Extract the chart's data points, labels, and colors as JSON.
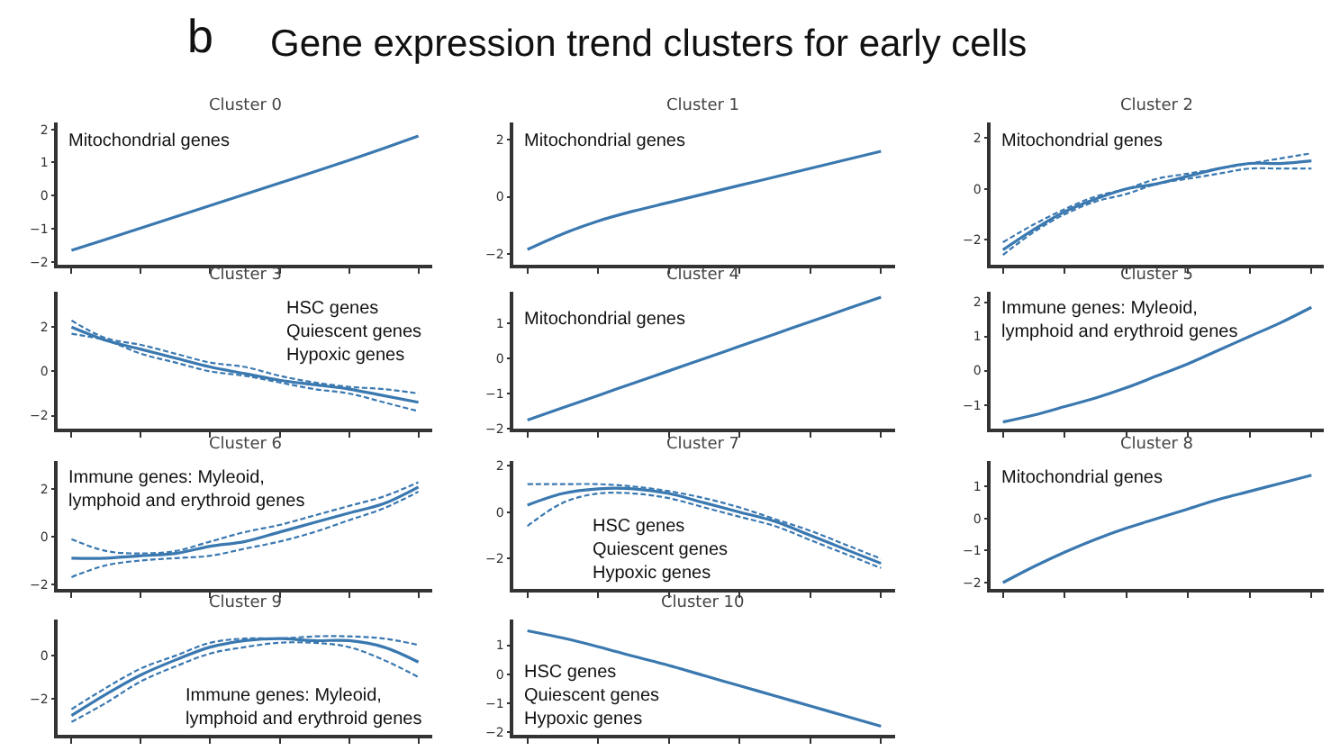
{
  "chart_data": [
    {
      "type": "line",
      "title": "Cluster 0",
      "annotations": [
        "b",
        "Gene expression trend clusters for early cells",
        "Mitochondrial genes"
      ],
      "categories": [
        null,
        null,
        null,
        null,
        null,
        null,
        null,
        null,
        null,
        null,
        null
      ],
      "ylim": [
        -2.1,
        2.2
      ],
      "yticks": [
        -2,
        -1,
        0,
        1,
        2
      ],
      "tick_labels": "y",
      "series": [
        {
          "color": "#3a78b0",
          "values": [
            -1.65,
            -1.32,
            -0.98,
            -0.64,
            -0.3,
            0.04,
            0.38,
            0.72,
            1.07,
            1.43,
            1.8
          ]
        }
      ]
    },
    {
      "type": "line",
      "title": "Cluster 1",
      "annotations": [
        "Mitochondrial genes"
      ],
      "categories": [
        null,
        null,
        null,
        null,
        null,
        null,
        null,
        null,
        null,
        null,
        null
      ],
      "ylim": [
        -2.4,
        2.6
      ],
      "yticks": [
        -2,
        0,
        2
      ],
      "tick_labels": "y",
      "series": [
        {
          "color": "#3a78b0",
          "values": [
            -1.85,
            -1.3,
            -0.85,
            -0.5,
            -0.2,
            0.1,
            0.4,
            0.7,
            1.0,
            1.3,
            1.6
          ]
        }
      ]
    },
    {
      "type": "line",
      "title": "Cluster 2",
      "annotations": [
        "Mitochondrial genes"
      ],
      "categories": [
        null,
        null,
        null,
        null,
        null,
        null,
        null,
        null,
        null,
        null,
        null
      ],
      "ylim": [
        -3.0,
        2.6
      ],
      "yticks": [
        -2,
        0,
        2
      ],
      "tick_labels": "y",
      "series": [
        {
          "color": "#3a78b0",
          "values": [
            -2.4,
            -1.6,
            -0.9,
            -0.4,
            0.0,
            0.2,
            0.5,
            0.8,
            1.0,
            1.0,
            1.1
          ]
        },
        {
          "color": "#3a78b0",
          "line_style": "dashed",
          "values": [
            -2.6,
            -1.7,
            -1.0,
            -0.5,
            -0.2,
            0.2,
            0.4,
            0.6,
            0.8,
            0.8,
            0.8
          ]
        },
        {
          "color": "#3a78b0",
          "line_style": "dashed",
          "values": [
            -2.1,
            -1.4,
            -0.8,
            -0.3,
            0.0,
            0.4,
            0.6,
            0.8,
            1.0,
            1.2,
            1.4
          ]
        }
      ]
    },
    {
      "type": "line",
      "title": "Cluster 3",
      "annotations": [
        "HSC genes\nQuiescent genes\nHypoxic genes"
      ],
      "categories": [
        null,
        null,
        null,
        null,
        null,
        null,
        null,
        null,
        null,
        null,
        null
      ],
      "ylim": [
        -2.6,
        3.6
      ],
      "yticks": [
        -2,
        0,
        2
      ],
      "tick_labels": "y",
      "series": [
        {
          "color": "#3a78b0",
          "values": [
            2.0,
            1.4,
            1.0,
            0.6,
            0.2,
            -0.1,
            -0.4,
            -0.6,
            -0.8,
            -1.1,
            -1.4
          ]
        },
        {
          "color": "#3a78b0",
          "line_style": "dashed",
          "values": [
            1.7,
            1.4,
            0.8,
            0.4,
            0.0,
            -0.2,
            -0.5,
            -0.8,
            -1.0,
            -1.4,
            -1.8
          ]
        },
        {
          "color": "#3a78b0",
          "line_style": "dashed",
          "values": [
            2.3,
            1.5,
            1.2,
            0.8,
            0.4,
            0.2,
            -0.2,
            -0.5,
            -0.7,
            -0.8,
            -1.0
          ]
        }
      ]
    },
    {
      "type": "line",
      "title": "Cluster 4",
      "annotations": [
        "Mitochondrial genes"
      ],
      "categories": [
        null,
        null,
        null,
        null,
        null,
        null,
        null,
        null,
        null,
        null,
        null
      ],
      "ylim": [
        -2.0,
        1.9
      ],
      "yticks": [
        -2,
        -1,
        0,
        1
      ],
      "tick_labels": "y",
      "series": [
        {
          "color": "#3a78b0",
          "values": [
            -1.75,
            -1.4,
            -1.05,
            -0.7,
            -0.35,
            0.0,
            0.35,
            0.7,
            1.05,
            1.4,
            1.75
          ]
        }
      ]
    },
    {
      "type": "line",
      "title": "Cluster 5",
      "annotations": [
        "Immune genes: Myleoid,\nlymphoid and erythroid genes"
      ],
      "categories": [
        null,
        null,
        null,
        null,
        null,
        null,
        null,
        null,
        null,
        null,
        null
      ],
      "ylim": [
        -1.7,
        2.3
      ],
      "yticks": [
        -1,
        0,
        1,
        2
      ],
      "tick_labels": "y",
      "series": [
        {
          "color": "#3a78b0",
          "values": [
            -1.5,
            -1.3,
            -1.05,
            -0.8,
            -0.5,
            -0.15,
            0.2,
            0.6,
            1.0,
            1.4,
            1.85
          ]
        }
      ]
    },
    {
      "type": "line",
      "title": "Cluster 6",
      "annotations": [
        "Immune genes: Myleoid,\nlymphoid and erythroid genes"
      ],
      "categories": [
        null,
        null,
        null,
        null,
        null,
        null,
        null,
        null,
        null,
        null,
        null
      ],
      "ylim": [
        -2.2,
        3.2
      ],
      "yticks": [
        -2,
        0,
        2
      ],
      "tick_labels": "y",
      "series": [
        {
          "color": "#3a78b0",
          "values": [
            -0.9,
            -0.9,
            -0.8,
            -0.7,
            -0.4,
            -0.2,
            0.2,
            0.6,
            1.0,
            1.4,
            2.1
          ]
        },
        {
          "color": "#3a78b0",
          "line_style": "dashed",
          "values": [
            -1.7,
            -1.2,
            -1.0,
            -0.9,
            -0.8,
            -0.5,
            -0.2,
            0.2,
            0.7,
            1.2,
            1.9
          ]
        },
        {
          "color": "#3a78b0",
          "line_style": "dashed",
          "values": [
            -0.1,
            -0.6,
            -0.7,
            -0.6,
            -0.2,
            0.2,
            0.5,
            0.9,
            1.3,
            1.7,
            2.3
          ]
        }
      ]
    },
    {
      "type": "line",
      "title": "Cluster 7",
      "annotations": [
        "HSC genes\nQuiescent genes\nHypoxic genes"
      ],
      "categories": [
        null,
        null,
        null,
        null,
        null,
        null,
        null,
        null,
        null,
        null,
        null
      ],
      "ylim": [
        -3.3,
        2.2
      ],
      "yticks": [
        -2,
        0,
        2
      ],
      "tick_labels": "y",
      "series": [
        {
          "color": "#3a78b0",
          "values": [
            0.3,
            0.8,
            1.0,
            1.0,
            0.8,
            0.4,
            0.0,
            -0.4,
            -1.0,
            -1.6,
            -2.2
          ]
        },
        {
          "color": "#3a78b0",
          "line_style": "dashed",
          "values": [
            -0.6,
            0.4,
            0.8,
            0.8,
            0.6,
            0.2,
            -0.2,
            -0.6,
            -1.2,
            -1.8,
            -2.4
          ]
        },
        {
          "color": "#3a78b0",
          "line_style": "dashed",
          "values": [
            1.2,
            1.2,
            1.2,
            1.1,
            0.9,
            0.6,
            0.2,
            -0.3,
            -0.8,
            -1.4,
            -2.0
          ]
        }
      ]
    },
    {
      "type": "line",
      "title": "Cluster 8",
      "annotations": [
        "Mitochondrial genes"
      ],
      "categories": [
        null,
        null,
        null,
        null,
        null,
        null,
        null,
        null,
        null,
        null,
        null
      ],
      "ylim": [
        -2.2,
        1.8
      ],
      "yticks": [
        -2,
        -1,
        0,
        1
      ],
      "tick_labels": "y",
      "series": [
        {
          "color": "#3a78b0",
          "values": [
            -2.0,
            -1.5,
            -1.05,
            -0.65,
            -0.3,
            0.0,
            0.3,
            0.6,
            0.85,
            1.1,
            1.35
          ]
        }
      ]
    },
    {
      "type": "line",
      "title": "Cluster 9",
      "annotations": [
        "Immune genes: Myleoid,\nlymphoid and erythroid genes"
      ],
      "categories": [
        null,
        null,
        null,
        null,
        null,
        null,
        null,
        null,
        null,
        null,
        null
      ],
      "ylim": [
        -3.7,
        1.7
      ],
      "yticks": [
        -2,
        0
      ],
      "tick_labels": "y",
      "series": [
        {
          "color": "#3a78b0",
          "values": [
            -2.8,
            -1.8,
            -0.9,
            -0.2,
            0.4,
            0.7,
            0.8,
            0.7,
            0.7,
            0.4,
            -0.3
          ]
        },
        {
          "color": "#3a78b0",
          "line_style": "dashed",
          "values": [
            -3.1,
            -2.2,
            -1.2,
            -0.5,
            0.1,
            0.4,
            0.6,
            0.6,
            0.4,
            -0.2,
            -1.0
          ]
        },
        {
          "color": "#3a78b0",
          "line_style": "dashed",
          "values": [
            -2.5,
            -1.5,
            -0.6,
            0.0,
            0.6,
            0.8,
            0.8,
            0.9,
            0.9,
            0.8,
            0.5
          ]
        }
      ]
    },
    {
      "type": "line",
      "title": "Cluster 10",
      "annotations": [
        "HSC genes\nQuiescent genes\nHypoxic genes"
      ],
      "categories": [
        null,
        null,
        null,
        null,
        null,
        null,
        null,
        null,
        null,
        null,
        null
      ],
      "ylim": [
        -2.1,
        1.9
      ],
      "yticks": [
        -2,
        -1,
        0,
        1
      ],
      "tick_labels": "y",
      "series": [
        {
          "color": "#3a78b0",
          "values": [
            1.5,
            1.25,
            0.95,
            0.62,
            0.3,
            -0.05,
            -0.4,
            -0.75,
            -1.1,
            -1.45,
            -1.8
          ]
        }
      ]
    }
  ]
}
